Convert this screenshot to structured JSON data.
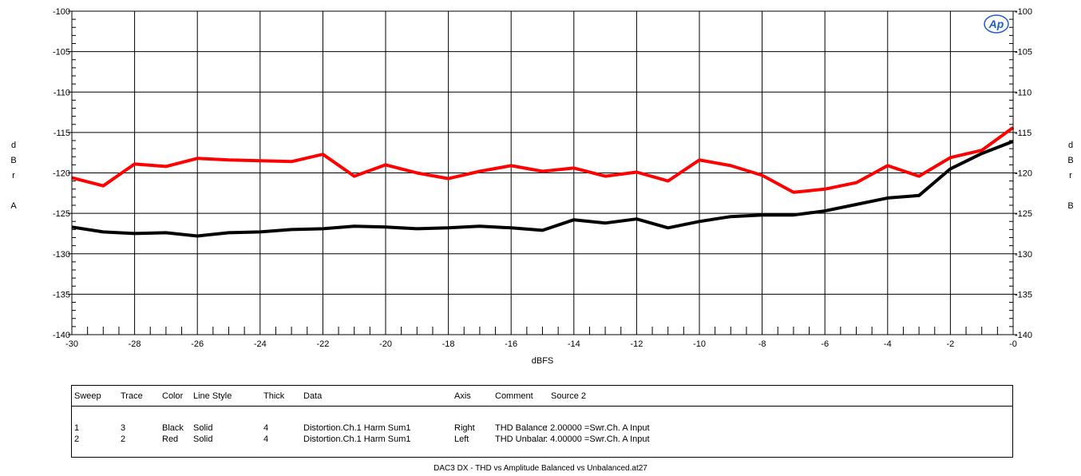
{
  "chart_data": {
    "type": "line",
    "title": "",
    "xlabel": "dBFS",
    "ylabel_left": [
      "d",
      "B",
      "r",
      "",
      "A"
    ],
    "ylabel_right": [
      "d",
      "B",
      "r",
      "",
      "B"
    ],
    "xlim": [
      -30,
      0
    ],
    "ylim": [
      -140,
      -100
    ],
    "x_ticks": [
      -30,
      -28,
      -26,
      -24,
      -22,
      -20,
      -18,
      -16,
      -14,
      -12,
      -10,
      -8,
      -6,
      -4,
      -2,
      0
    ],
    "x_tick_labels": [
      "-30",
      "-28",
      "-26",
      "-24",
      "-22",
      "-20",
      "-18",
      "-16",
      "-14",
      "-12",
      "-10",
      "-8",
      "-6",
      "-4",
      "-2",
      "-0"
    ],
    "y_ticks": [
      -140,
      -135,
      -130,
      -125,
      -120,
      -115,
      -110,
      -105,
      -100
    ],
    "y_tick_labels": [
      "-140",
      "-135",
      "-130",
      "-125",
      "-120",
      "-115",
      "-110",
      "-105",
      "-100"
    ],
    "grid": true,
    "x": [
      -30,
      -29,
      -28,
      -27,
      -26,
      -25,
      -24,
      -23,
      -22,
      -21,
      -20,
      -19,
      -18,
      -17,
      -16,
      -15,
      -14,
      -13,
      -12,
      -11,
      -10,
      -9,
      -8,
      -7,
      -6,
      -5,
      -4,
      -3,
      -2,
      -1,
      0
    ],
    "series": [
      {
        "color": "#000000",
        "axis": "right",
        "values": [
          -126.7,
          -127.3,
          -127.5,
          -127.4,
          -127.8,
          -127.4,
          -127.3,
          -127.0,
          -126.9,
          -126.6,
          -126.7,
          -126.9,
          -126.8,
          -126.6,
          -126.8,
          -127.1,
          -125.8,
          -126.2,
          -125.7,
          -126.8,
          -126.0,
          -125.4,
          -125.2,
          -125.2,
          -124.7,
          -123.9,
          -123.1,
          -122.8,
          -119.5,
          -117.6,
          -116.1
        ]
      },
      {
        "color": "#ff0000",
        "axis": "left",
        "values": [
          -120.6,
          -121.6,
          -118.9,
          -119.2,
          -118.2,
          -118.4,
          -118.5,
          -118.6,
          -117.7,
          -120.4,
          -119.0,
          -120.0,
          -120.7,
          -119.8,
          -119.1,
          -119.8,
          -119.4,
          -120.4,
          -119.9,
          -121.0,
          -118.4,
          -119.1,
          -120.3,
          -122.4,
          -122.0,
          -121.2,
          -119.1,
          -120.4,
          -118.1,
          -117.2,
          -114.4
        ]
      }
    ]
  },
  "logo": {
    "text": "Ap",
    "color": "#1f5fc9"
  },
  "legend": {
    "headers": [
      "Sweep",
      "Trace",
      "Color",
      "Line Style",
      "Thick",
      "Data",
      "Axis",
      "Comment",
      "Source 2"
    ],
    "rows": [
      {
        "sweep": "1",
        "trace": "3",
        "color": "Black",
        "line_style": "Solid",
        "thick": "4",
        "data": "Distortion.Ch.1 Harm Sum1",
        "axis": "Right",
        "comment": "THD Balance",
        "source2": ": 2.00000  =Swr.Ch. A Input"
      },
      {
        "sweep": "2",
        "trace": "2",
        "color": "Red",
        "line_style": "Solid",
        "thick": "4",
        "data": "Distortion.Ch.1 Harm Sum1",
        "axis": "Left",
        "comment": "THD Unbalar",
        "source2": ": 4.00000  =Swr.Ch. A Input"
      }
    ]
  },
  "footer": "DAC3 DX - THD vs Amplitude Balanced vs Unbalanced.at27"
}
